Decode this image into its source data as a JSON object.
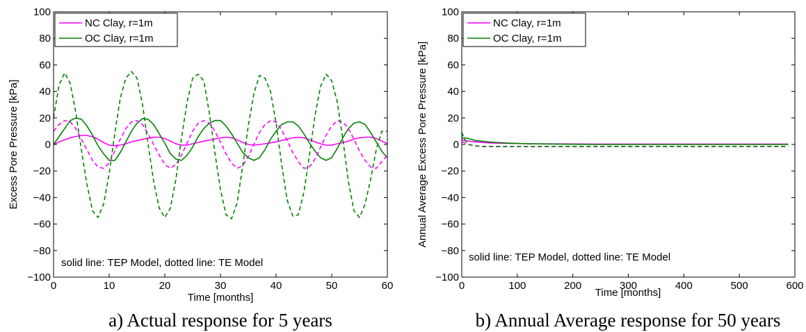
{
  "chart_data": [
    {
      "type": "line",
      "caption": "a) Actual response for 5 years",
      "xlabel": "Time [months]",
      "ylabel": "Excess Pore Pressure [kPa]",
      "xlim": [
        0,
        60
      ],
      "ylim": [
        -100,
        100
      ],
      "xticks": [
        "0",
        "10",
        "20",
        "30",
        "40",
        "50",
        "60"
      ],
      "yticks": [
        "100",
        "80",
        "60",
        "40",
        "20",
        "0",
        "−20",
        "−40",
        "−60",
        "−80",
        "−100"
      ],
      "legend": {
        "placement": "top-left",
        "entries": [
          "NC Clay, r=1m",
          "OC Clay, r=1m"
        ]
      },
      "annotation": "solid line: TEP Model, dotted line: TE Model",
      "series": [
        {
          "name": "NC Clay, r=1m",
          "model": "solid",
          "color": "#ff00ff",
          "x": [
            0,
            1,
            2,
            3,
            4,
            5,
            6,
            7,
            8,
            9,
            10,
            11,
            12,
            13,
            14,
            15,
            16,
            17,
            18,
            19,
            20,
            21,
            22,
            23,
            24,
            25,
            26,
            27,
            28,
            29,
            30,
            31,
            32,
            33,
            34,
            35,
            36,
            37,
            38,
            39,
            40,
            41,
            42,
            43,
            44,
            45,
            46,
            47,
            48,
            49,
            50,
            51,
            52,
            53,
            54,
            55,
            56,
            57,
            58,
            59,
            60
          ],
          "y": [
            0,
            2,
            3.5,
            5,
            6,
            6.8,
            6.8,
            5.8,
            4,
            1.5,
            -0.5,
            -1,
            -0.5,
            0.5,
            2,
            3,
            3.8,
            4.8,
            5.5,
            5.5,
            4.5,
            2.5,
            0.5,
            -0.5,
            -0.5,
            0.5,
            1.5,
            2.5,
            3.2,
            4.2,
            5,
            5.5,
            5,
            3.5,
            1.5,
            0,
            -0.5,
            0,
            0.5,
            1.2,
            2,
            3,
            4,
            5,
            5.5,
            5,
            3.5,
            2,
            0.5,
            -0.5,
            -0.5,
            0.5,
            1.5,
            2.5,
            4,
            5,
            5.5,
            5.5,
            4.5,
            2.5,
            0.5
          ]
        },
        {
          "name": "OC Clay, r=1m",
          "model": "solid",
          "color": "#008000",
          "x": [
            0,
            1,
            2,
            3,
            4,
            5,
            6,
            7,
            8,
            9,
            10,
            11,
            12,
            13,
            14,
            15,
            16,
            17,
            18,
            19,
            20,
            21,
            22,
            23,
            24,
            25,
            26,
            27,
            28,
            29,
            30,
            31,
            32,
            33,
            34,
            35,
            36,
            37,
            38,
            39,
            40,
            41,
            42,
            43,
            44,
            45,
            46,
            47,
            48,
            49,
            50,
            51,
            52,
            53,
            54,
            55,
            56,
            57,
            58,
            59,
            60
          ],
          "y": [
            0,
            6,
            12,
            18,
            20,
            19,
            14,
            7,
            -1,
            -7,
            -12,
            -12,
            -6,
            2,
            10,
            16,
            19.5,
            19,
            15,
            8,
            1,
            -7,
            -11,
            -12,
            -8,
            -2,
            6,
            12,
            16,
            18,
            18,
            14,
            8,
            1,
            -6,
            -10,
            -12,
            -10,
            -4,
            4,
            10,
            15,
            17,
            17,
            14,
            8,
            1,
            -5,
            -10,
            -12,
            -10,
            -3,
            5,
            12,
            16,
            17,
            15,
            9,
            2,
            -5,
            -10
          ]
        },
        {
          "name": "NC Clay, r=1m",
          "model": "dotted",
          "color": "#ff00ff",
          "x": [
            0,
            1,
            2,
            3,
            4,
            5,
            6,
            7,
            8,
            9,
            10,
            11,
            12,
            13,
            14,
            15,
            16,
            17,
            18,
            19,
            20,
            21,
            22,
            23,
            24,
            25,
            26,
            27,
            28,
            29,
            30,
            31,
            32,
            33,
            34,
            35,
            36,
            37,
            38,
            39,
            40,
            41,
            42,
            43,
            44,
            45,
            46,
            47,
            48,
            49,
            50,
            51,
            52,
            53,
            54,
            55,
            56,
            57,
            58,
            59,
            60
          ],
          "y": [
            10,
            15,
            18,
            17,
            12,
            4,
            -4,
            -12,
            -17,
            -18,
            -14,
            -5,
            4,
            12,
            17,
            18,
            15,
            8,
            0,
            -8,
            -15,
            -18,
            -15,
            -8,
            1,
            10,
            16,
            18,
            16,
            10,
            2,
            -7,
            -14,
            -18,
            -16,
            -9,
            0,
            9,
            15,
            18,
            17,
            11,
            3,
            -6,
            -13,
            -18,
            -17,
            -11,
            -2,
            7,
            14,
            18,
            17,
            12,
            4,
            -5,
            -12,
            -17,
            -18,
            -13,
            -8
          ]
        },
        {
          "name": "OC Clay, r=1m",
          "model": "dotted",
          "color": "#008000",
          "x": [
            0,
            1,
            2,
            3,
            4,
            5,
            6,
            7,
            8,
            9,
            10,
            11,
            12,
            13,
            14,
            15,
            16,
            17,
            18,
            19,
            20,
            21,
            22,
            23,
            24,
            25,
            26,
            27,
            28,
            29,
            30,
            31,
            32,
            33,
            34,
            35,
            36,
            37,
            38,
            39,
            40,
            41,
            42,
            43,
            44,
            45,
            46,
            47,
            48,
            49,
            50,
            51,
            52,
            53,
            54,
            55,
            56,
            57,
            58,
            59,
            60
          ],
          "y": [
            20,
            45,
            54,
            46,
            24,
            -4,
            -30,
            -50,
            -55,
            -45,
            -22,
            8,
            35,
            50,
            55,
            50,
            30,
            0,
            -28,
            -48,
            -55,
            -48,
            -26,
            5,
            32,
            50,
            53,
            48,
            24,
            -6,
            -34,
            -53,
            -56,
            -44,
            -16,
            14,
            38,
            52,
            50,
            40,
            16,
            -15,
            -42,
            -54,
            -53,
            -36,
            -8,
            22,
            44,
            53,
            48,
            32,
            4,
            -28,
            -50,
            -55,
            -45,
            -26,
            -4,
            10,
            10
          ]
        }
      ]
    },
    {
      "type": "line",
      "caption": "b) Annual Average response for 50 years",
      "xlabel": "Time [months]",
      "ylabel": "Annual Average Excess Pore Pressure [kPa]",
      "xlim": [
        0,
        600
      ],
      "ylim": [
        -100,
        100
      ],
      "xticks": [
        "0",
        "100",
        "200",
        "300",
        "400",
        "500",
        "600"
      ],
      "yticks": [
        "100",
        "80",
        "60",
        "40",
        "20",
        "0",
        "−20",
        "−40",
        "−60",
        "−80",
        "−100"
      ],
      "legend": {
        "placement": "top-left",
        "entries": [
          "NC Clay, r=1m",
          "OC Clay, r=1m"
        ]
      },
      "annotation": "solid line: TEP Model, dotted line: TE Model",
      "series": [
        {
          "name": "NC Clay, r=1m",
          "model": "solid",
          "color": "#ff00ff",
          "x": [
            0,
            12,
            24,
            36,
            48,
            60,
            84,
            120,
            180,
            240,
            360,
            480,
            588
          ],
          "y": [
            3.5,
            2.5,
            2,
            1.5,
            1.2,
            1,
            0.8,
            0.5,
            0.4,
            0.3,
            0.3,
            0.3,
            0.3
          ]
        },
        {
          "name": "OC Clay, r=1m",
          "model": "solid",
          "color": "#008000",
          "x": [
            0,
            12,
            24,
            36,
            48,
            60,
            84,
            120,
            180,
            240,
            360,
            480,
            588
          ],
          "y": [
            5,
            4.5,
            3,
            2.5,
            2,
            1.5,
            1,
            0.5,
            0.2,
            0,
            0,
            0,
            0
          ]
        },
        {
          "name": "NC Clay, r=1m",
          "model": "dotted",
          "color": "#ff00ff",
          "x": [
            0,
            12,
            24,
            36,
            48,
            60,
            84,
            120,
            180,
            240,
            360,
            480,
            588
          ],
          "y": [
            2,
            0,
            -1,
            -1.5,
            -1.5,
            -1.5,
            -1.5,
            -1.5,
            -1.5,
            -1.5,
            -1.5,
            -1.5,
            -1.5
          ]
        },
        {
          "name": "OC Clay, r=1m",
          "model": "dotted",
          "color": "#008000",
          "x": [
            0,
            3,
            6,
            12,
            24,
            36,
            48,
            60,
            84,
            120,
            180,
            240,
            360,
            480,
            588
          ],
          "y": [
            9,
            6,
            3,
            0,
            -1,
            -1.5,
            -1.5,
            -1.5,
            -1.5,
            -1.5,
            -1.5,
            -1.5,
            -1.5,
            -1.5,
            -1.5
          ]
        }
      ]
    }
  ]
}
